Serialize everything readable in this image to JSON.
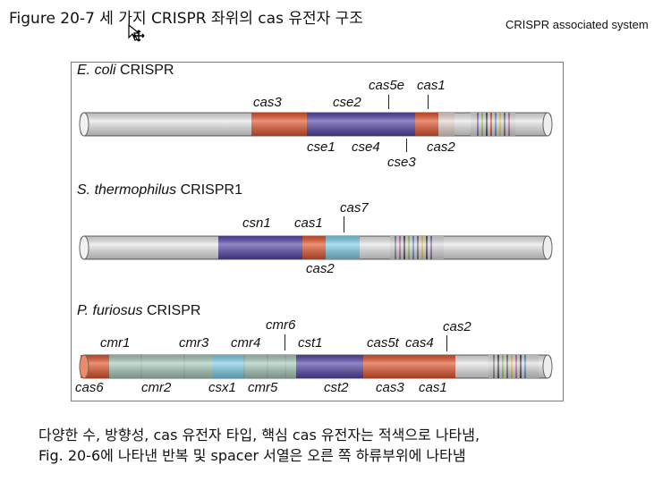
{
  "header": {
    "title": "Figure 20-7 세 가지 CRISPR 좌위의  cas 유전자 구조",
    "subtitle": "CRISPR associated system"
  },
  "colors": {
    "cas_red": "#e2572e",
    "cse_purple": "#5747a8",
    "cas7_blue": "#7fd0e8",
    "cmr_green": "#a9cbbb",
    "backbone": "#e8e8e8"
  },
  "loci": [
    {
      "organism_italic": "E. coli",
      "organism_rest": " CRISPR",
      "genes_above": [
        "cas3",
        "cse2",
        "cas5e",
        "cas1"
      ],
      "genes_below": [
        "cse1",
        "cse4",
        "cse3",
        "cas2"
      ]
    },
    {
      "organism_italic": "S. thermophilus",
      "organism_rest": " CRISPR1",
      "genes_above": [
        "csn1",
        "cas1",
        "cas7"
      ],
      "genes_below": [
        "cas2"
      ]
    },
    {
      "organism_italic": "P. furiosus",
      "organism_rest": " CRISPR",
      "genes_above": [
        "cmr6",
        "cmr1",
        "cmr3",
        "cmr4",
        "cst1",
        "cas5t",
        "cas4",
        "cas2"
      ],
      "genes_below": [
        "cas6",
        "cmr2",
        "csx1",
        "cmr5",
        "cst2",
        "cas3",
        "cas1"
      ]
    }
  ],
  "caption": {
    "line1": "다양한 수, 방향성, cas 유전자 타입, 핵심 cas 유전자는 적색으로 나타냄,",
    "line2": "Fig. 20-6에 나타낸 반복 및 spacer 서열은 오른 쪽 하류부위에 나타냄"
  }
}
